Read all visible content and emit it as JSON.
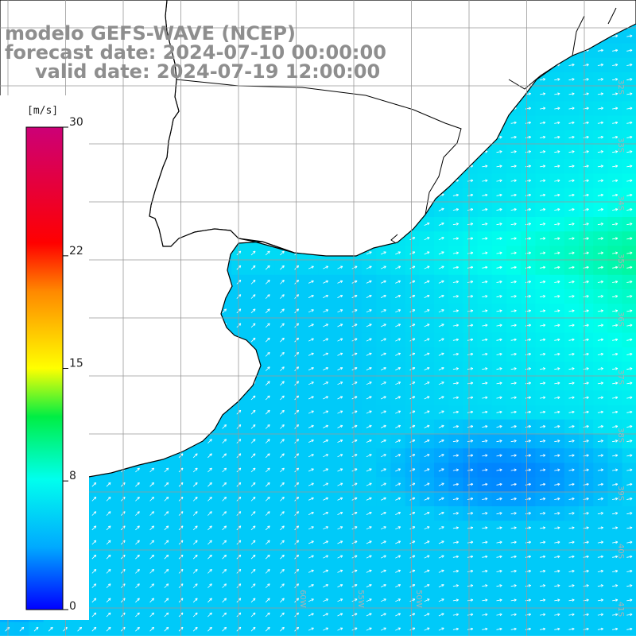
{
  "header": {
    "line1": "modelo GEFS-WAVE (NCEP)",
    "line2": "forecast date: 2024-07-10 00:00:00",
    "line3": "valid date: 2024-07-19 12:00:00"
  },
  "colorbar": {
    "unit": "[m/s]",
    "ticks": [
      "30",
      "22",
      "15",
      "8",
      "0"
    ],
    "tick_values": [
      30,
      22,
      15,
      8,
      0
    ],
    "min": 0,
    "max": 30,
    "colors": [
      "#0000ff",
      "#00aaff",
      "#00ffee",
      "#00ee44",
      "#ffff00",
      "#ff8800",
      "#ff0000",
      "#cc0077"
    ]
  },
  "lat_labels": [
    "32S",
    "33S",
    "34S",
    "35S",
    "36S",
    "37S",
    "38S",
    "39S",
    "40S",
    "41S"
  ],
  "lon_labels": [
    "60W",
    "55W",
    "50W"
  ],
  "colors": {
    "land": "#ffffff",
    "coast": "#000000",
    "grid": "#999999",
    "title": "#8e8e8e",
    "arrow": "#ffffff"
  }
}
